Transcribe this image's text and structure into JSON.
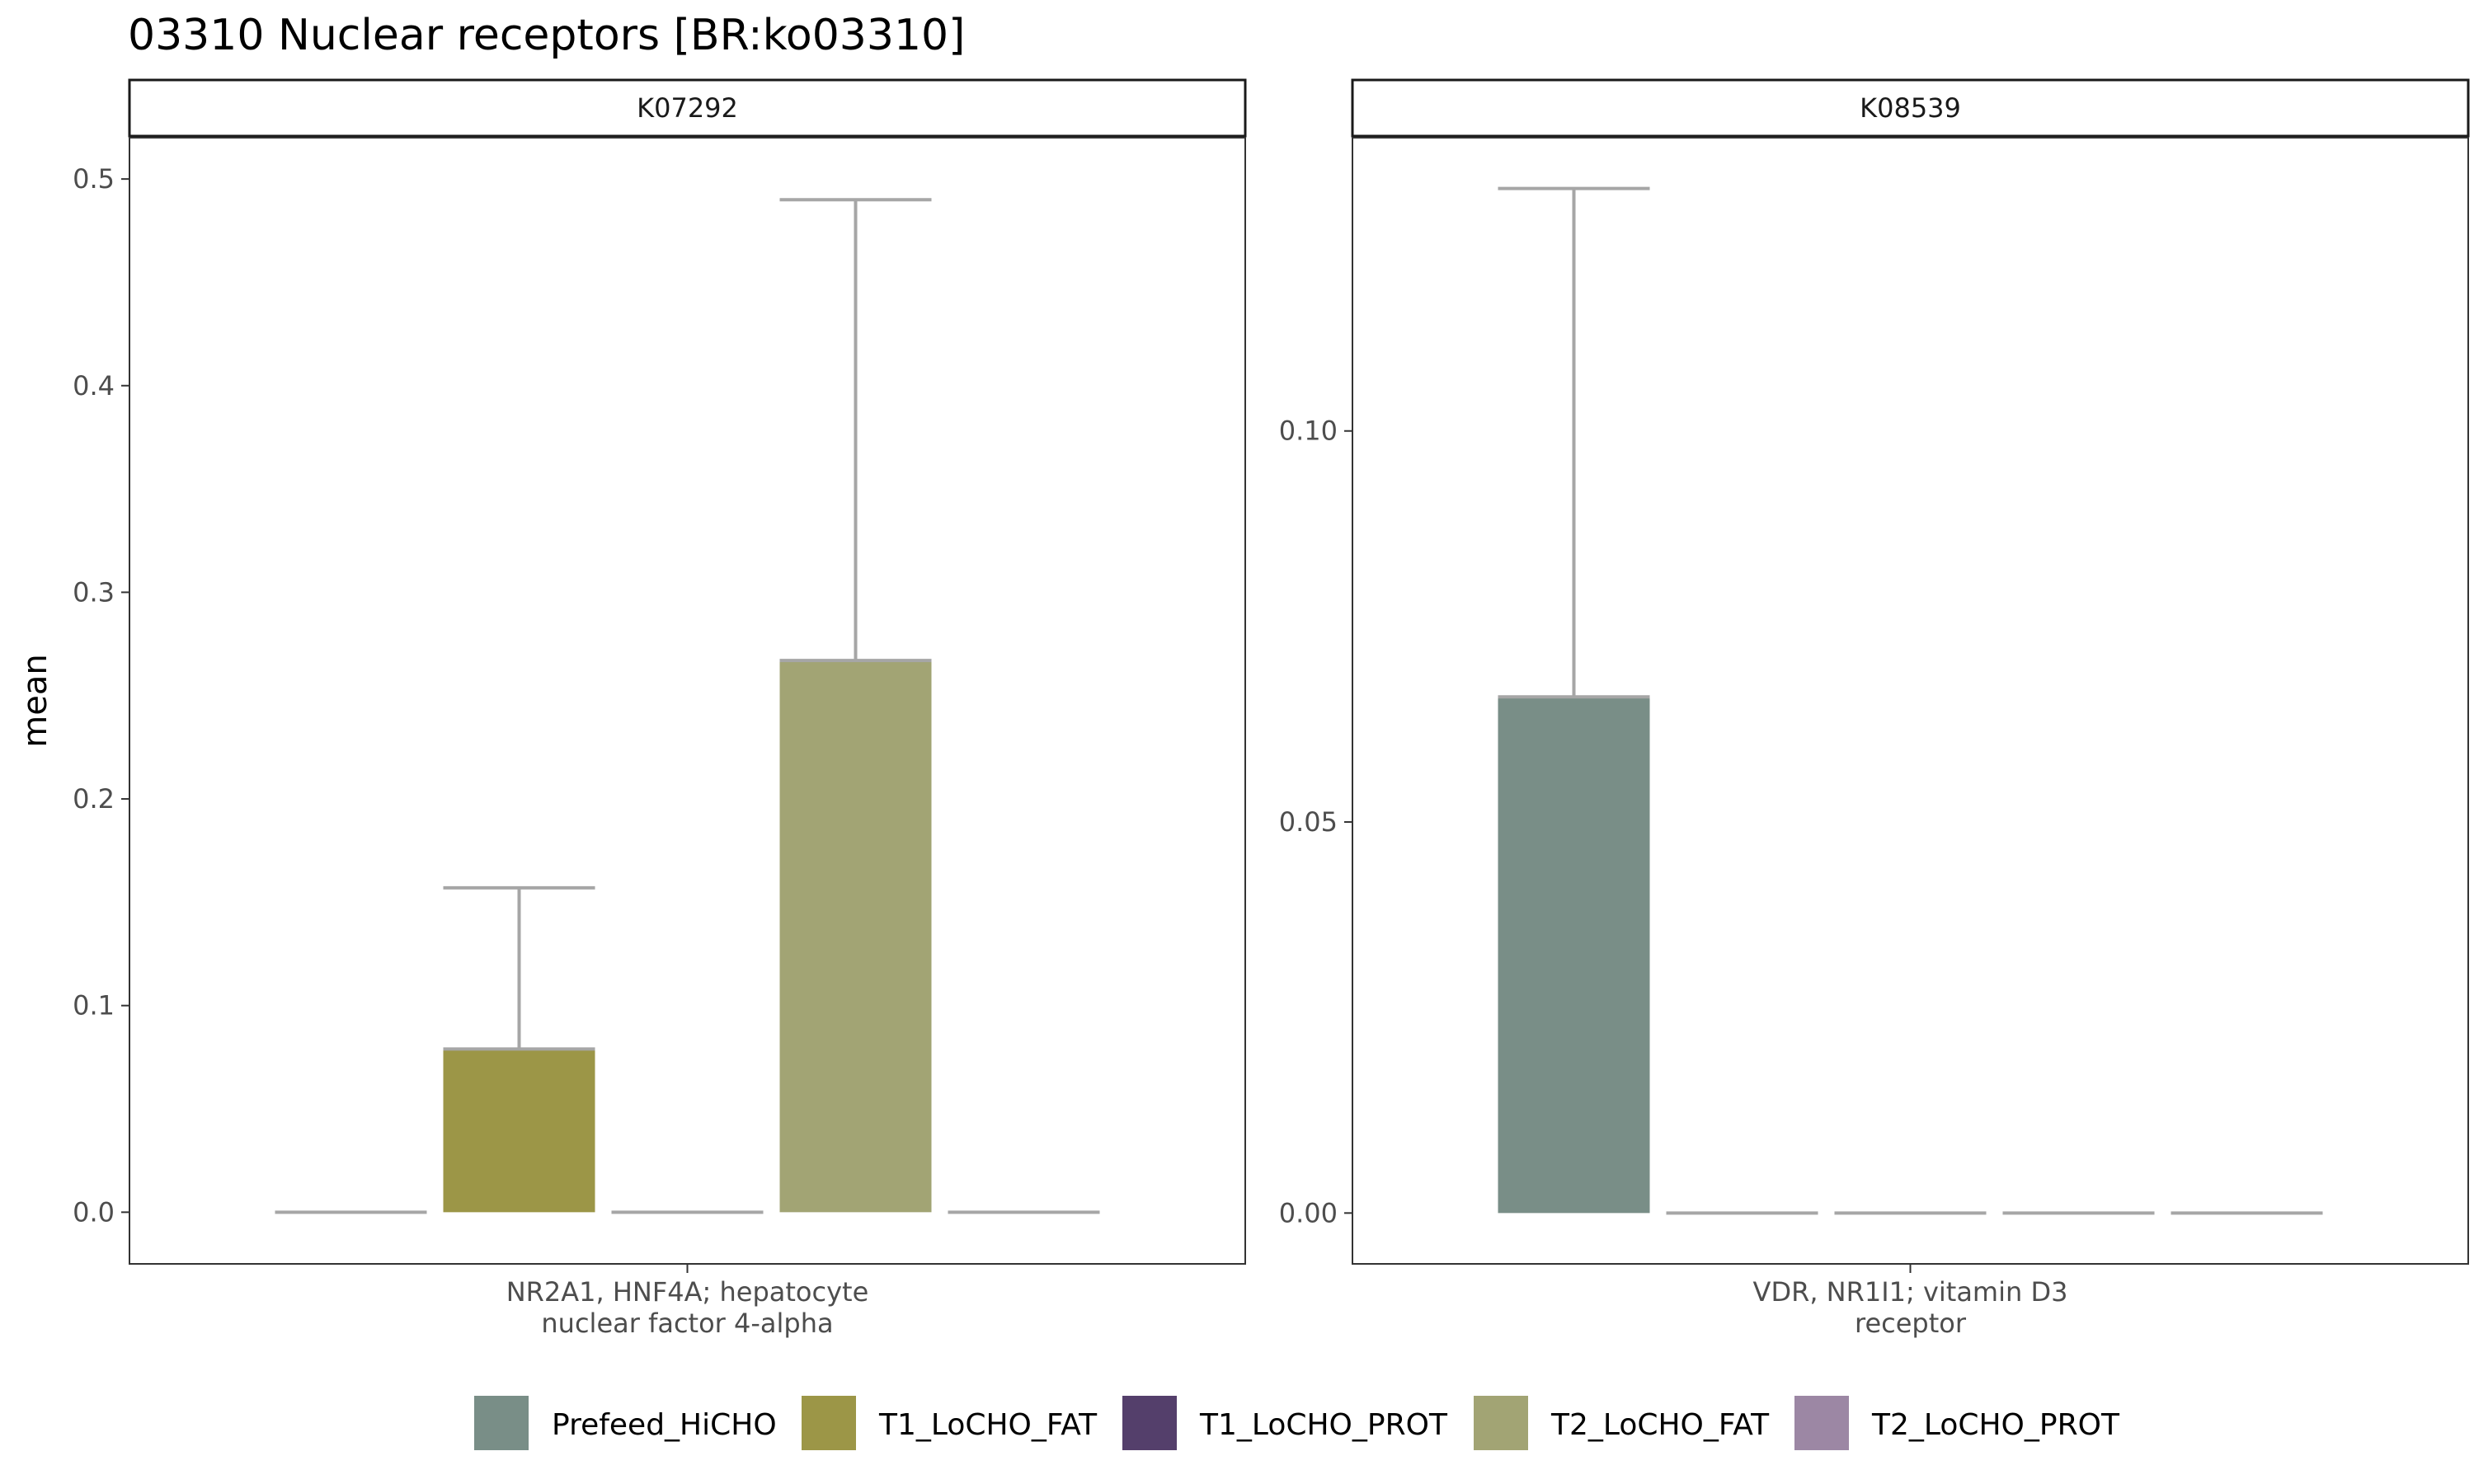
{
  "title": "03310 Nuclear receptors [BR:ko03310]",
  "ylabel": "mean",
  "groups": [
    "Prefeed_HiCHO",
    "T1_LoCHO_FAT",
    "T1_LoCHO_PROT",
    "T2_LoCHO_FAT",
    "T2_LoCHO_PROT"
  ],
  "colors": {
    "Prefeed_HiCHO": "#798e87",
    "T1_LoCHO_FAT": "#9c9647",
    "T1_LoCHO_PROT": "#543f6b",
    "T2_LoCHO_FAT": "#a2a474",
    "T2_LoCHO_PROT": "#9c87a4",
    "errorbar": "#a6a6a6"
  },
  "chart_data": [
    {
      "type": "bar",
      "panel": "K07292",
      "xlabel_lines": [
        "NR2A1, HNF4A; hepatocyte",
        "nuclear factor 4-alpha"
      ],
      "ylim": [
        -0.025,
        0.52
      ],
      "yticks": [
        0.0,
        0.1,
        0.2,
        0.3,
        0.4,
        0.5
      ],
      "ytick_labels": [
        "0.0",
        "0.1",
        "0.2",
        "0.3",
        "0.4",
        "0.5"
      ],
      "series": [
        {
          "name": "Prefeed_HiCHO",
          "value": 0.0,
          "upper": 0.0
        },
        {
          "name": "T1_LoCHO_FAT",
          "value": 0.079,
          "upper": 0.157
        },
        {
          "name": "T1_LoCHO_PROT",
          "value": 0.0,
          "upper": 0.0
        },
        {
          "name": "T2_LoCHO_FAT",
          "value": 0.267,
          "upper": 0.49
        },
        {
          "name": "T2_LoCHO_PROT",
          "value": 0.0,
          "upper": 0.0
        }
      ]
    },
    {
      "type": "bar",
      "panel": "K08539",
      "xlabel_lines": [
        "VDR, NR1I1; vitamin D3",
        "receptor"
      ],
      "ylim": [
        -0.0065,
        0.1375
      ],
      "yticks": [
        0.0,
        0.05,
        0.1
      ],
      "ytick_labels": [
        "0.00",
        "0.05",
        "0.10"
      ],
      "series": [
        {
          "name": "Prefeed_HiCHO",
          "value": 0.066,
          "upper": 0.131
        },
        {
          "name": "T1_LoCHO_FAT",
          "value": 0.0,
          "upper": 0.0
        },
        {
          "name": "T1_LoCHO_PROT",
          "value": 0.0,
          "upper": 0.0
        },
        {
          "name": "T2_LoCHO_FAT",
          "value": 0.0,
          "upper": 0.0
        },
        {
          "name": "T2_LoCHO_PROT",
          "value": 0.0,
          "upper": 0.0
        }
      ]
    }
  ]
}
